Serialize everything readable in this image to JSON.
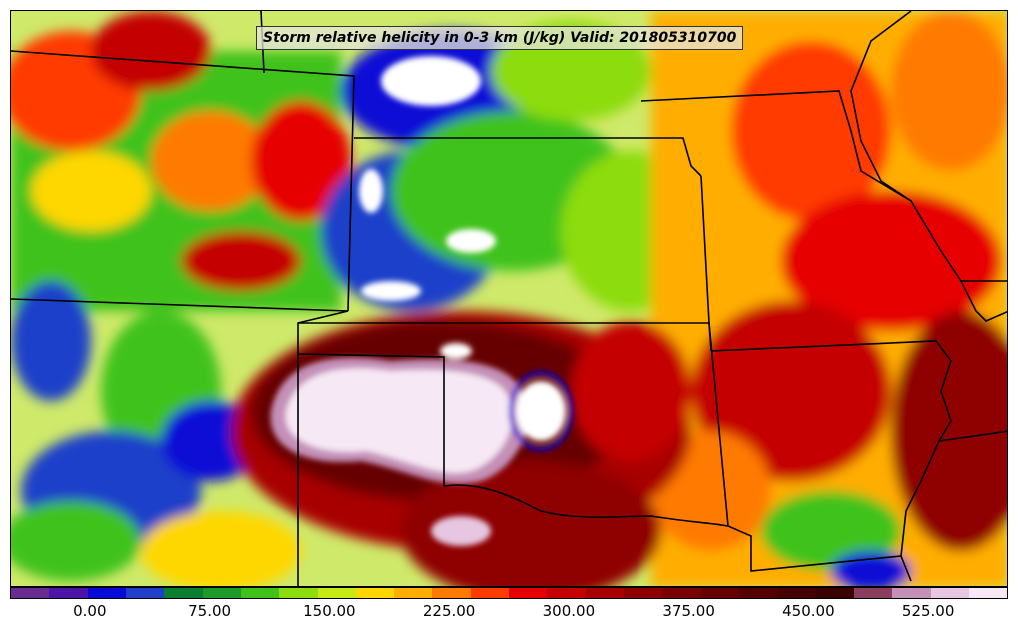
{
  "title": "Storm relative helicity in 0-3 km (J/kg) Valid: 201805310700",
  "colorbar": {
    "colors": [
      "#6a2c91",
      "#4b16a8",
      "#0a0ad6",
      "#1f3fc9",
      "#0b7f2f",
      "#1e9a2a",
      "#3fc21a",
      "#8ddc10",
      "#c8ea14",
      "#ffd700",
      "#ffae00",
      "#ff7a00",
      "#ff3b00",
      "#e60000",
      "#c40000",
      "#a80000",
      "#8f0000",
      "#7a0000",
      "#660000",
      "#550000",
      "#470000",
      "#3a0000",
      "#8a3d5c",
      "#c490b8",
      "#e6c6e0",
      "#f6e8f4"
    ],
    "tick_values": [
      0,
      75,
      150,
      225,
      300,
      375,
      450,
      525
    ],
    "tick_labels": [
      "0.00",
      "75.00",
      "150.00",
      "225.00",
      "300.00",
      "375.00",
      "450.00",
      "525.00"
    ],
    "min": -50,
    "max": 575
  },
  "map": {
    "region": "Central United States",
    "field": "0-3 km storm relative helicity",
    "units": "J/kg",
    "valid_time": "201805310700",
    "colors": {
      "background": "#cfe96a",
      "low_blue": "#1f3fc9",
      "purple": "#6a2c91",
      "green": "#3fc21a",
      "yellow": "#ffd700",
      "orange": "#ff7a00",
      "red": "#d40000",
      "dark_red": "#5a0000",
      "pink_white": "#f6e8f4",
      "borders": "#000000"
    }
  }
}
